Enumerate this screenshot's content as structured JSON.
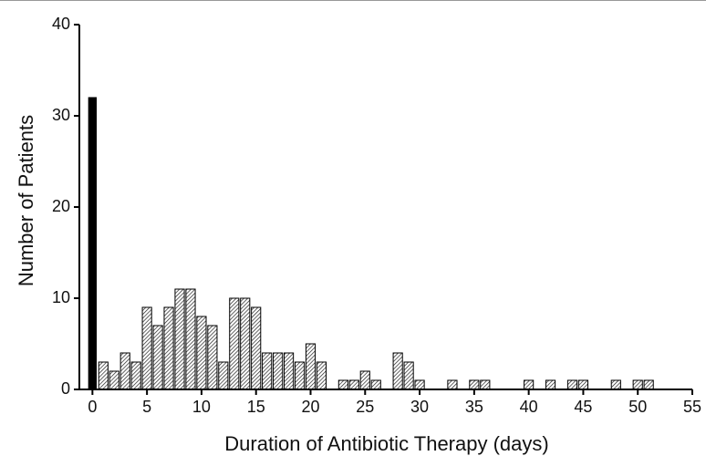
{
  "chart_data": {
    "type": "bar",
    "x_label": "Duration of Antibiotic Therapy (days)",
    "y_label": "Number of Patients",
    "x": [
      0,
      1,
      2,
      3,
      4,
      5,
      6,
      7,
      8,
      9,
      10,
      11,
      12,
      13,
      14,
      15,
      16,
      17,
      18,
      19,
      20,
      21,
      23,
      24,
      25,
      26,
      28,
      29,
      30,
      33,
      35,
      36,
      40,
      42,
      44,
      45,
      48,
      50,
      51
    ],
    "values": [
      32,
      3,
      2,
      4,
      3,
      9,
      7,
      9,
      11,
      11,
      8,
      7,
      3,
      10,
      10,
      9,
      4,
      4,
      4,
      3,
      5,
      3,
      1,
      1,
      2,
      1,
      4,
      3,
      1,
      1,
      1,
      1,
      1,
      1,
      1,
      1,
      1,
      1,
      1
    ],
    "fills": [
      "solid",
      "hatch",
      "hatch",
      "hatch",
      "hatch",
      "hatch",
      "hatch",
      "hatch",
      "hatch",
      "hatch",
      "hatch",
      "hatch",
      "hatch",
      "hatch",
      "hatch",
      "hatch",
      "hatch",
      "hatch",
      "hatch",
      "hatch",
      "hatch",
      "hatch",
      "hatch",
      "hatch",
      "hatch",
      "hatch",
      "hatch",
      "hatch",
      "hatch",
      "hatch",
      "hatch",
      "hatch",
      "hatch",
      "hatch",
      "hatch",
      "hatch",
      "hatch",
      "hatch",
      "hatch"
    ],
    "color": "#000000",
    "xlim": [
      -1.2,
      55
    ],
    "xticks": [
      0,
      5,
      10,
      15,
      20,
      25,
      30,
      35,
      40,
      45,
      50,
      55
    ],
    "ylim": [
      0,
      40
    ],
    "yticks": [
      0,
      10,
      20,
      30,
      40
    ],
    "grid": false
  }
}
